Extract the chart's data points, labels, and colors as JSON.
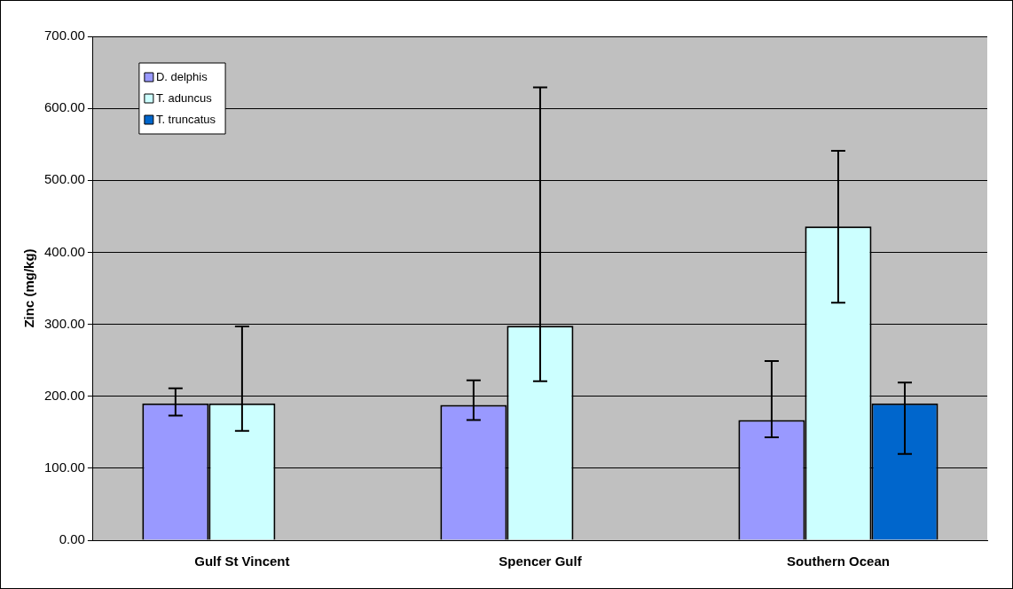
{
  "chart_data": {
    "type": "bar",
    "ylabel": "Zinc (mg/kg)",
    "categories": [
      "Gulf St Vincent",
      "Spencer Gulf",
      "Southern Ocean"
    ],
    "series": [
      {
        "name": "D. delphis",
        "color": "#9999ff",
        "values": [
          190,
          188,
          167
        ],
        "errors": [
          [
            173,
            211
          ],
          [
            167,
            222
          ],
          [
            143,
            249
          ]
        ]
      },
      {
        "name": "T. aduncus",
        "color": "#ccffff",
        "values": [
          190,
          298,
          436
        ],
        "errors": [
          [
            152,
            297
          ],
          [
            221,
            629
          ],
          [
            330,
            541
          ]
        ]
      },
      {
        "name": "T. truncatus",
        "color": "#0066cc",
        "values": [
          null,
          null,
          190
        ],
        "errors": [
          null,
          null,
          [
            120,
            219
          ]
        ]
      }
    ],
    "ylim": [
      0,
      700
    ],
    "yticks": [
      {
        "value": 0,
        "label": "0.00"
      },
      {
        "value": 100,
        "label": "100.00"
      },
      {
        "value": 200,
        "label": "200.00"
      },
      {
        "value": 300,
        "label": "300.00"
      },
      {
        "value": 400,
        "label": "400.00"
      },
      {
        "value": 500,
        "label": "500.00"
      },
      {
        "value": 600,
        "label": "600.00"
      },
      {
        "value": 700,
        "label": "700.00"
      }
    ],
    "grid": "y",
    "legend": "top left"
  }
}
